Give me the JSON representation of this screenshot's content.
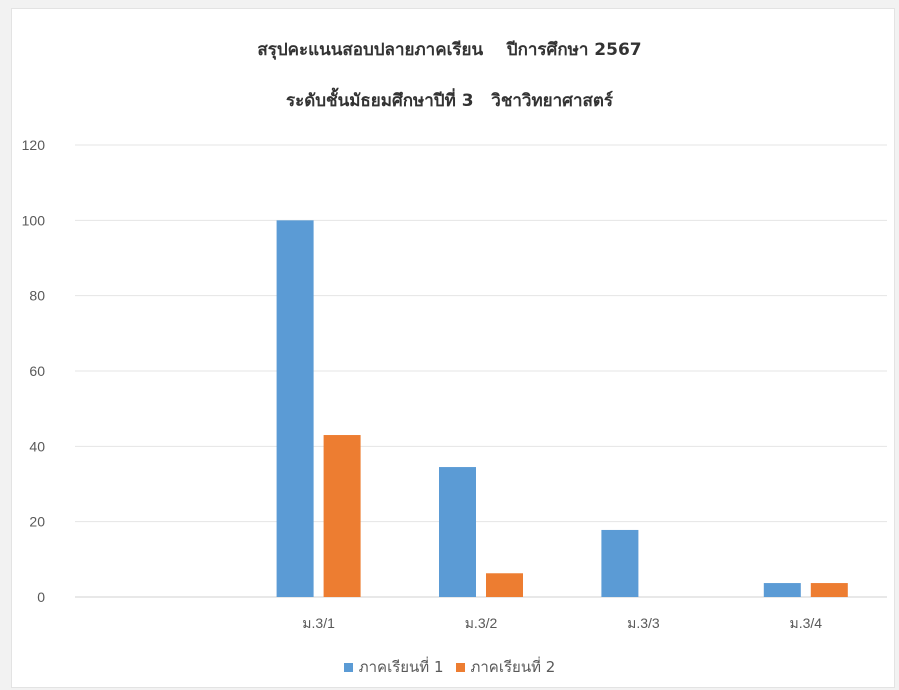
{
  "chart_data": {
    "type": "bar",
    "title": "สรุปคะแนนสอบปลายภาคเรียน    ปีการศึกษา 2567",
    "subtitle": "ระดับชั้นมัธยมศึกษาปีที่ 3   วิชาวิทยาศาสตร์",
    "categories": [
      "",
      "ม.3/1",
      "ม.3/2",
      "ม.3/3",
      "ม.3/4"
    ],
    "series": [
      {
        "name": "ภาคเรียนที่ 1",
        "color": "#5b9bd5",
        "values": [
          null,
          100,
          34.5,
          17.8,
          3.7
        ]
      },
      {
        "name": "ภาคเรียนที่ 2",
        "color": "#ed7d31",
        "values": [
          null,
          43,
          6.3,
          null,
          3.7
        ]
      }
    ],
    "ylim": [
      0,
      120
    ],
    "yticks": [
      "0",
      "20",
      "40",
      "60",
      "80",
      "100",
      "120"
    ],
    "grid": true,
    "legend": "bottom"
  }
}
